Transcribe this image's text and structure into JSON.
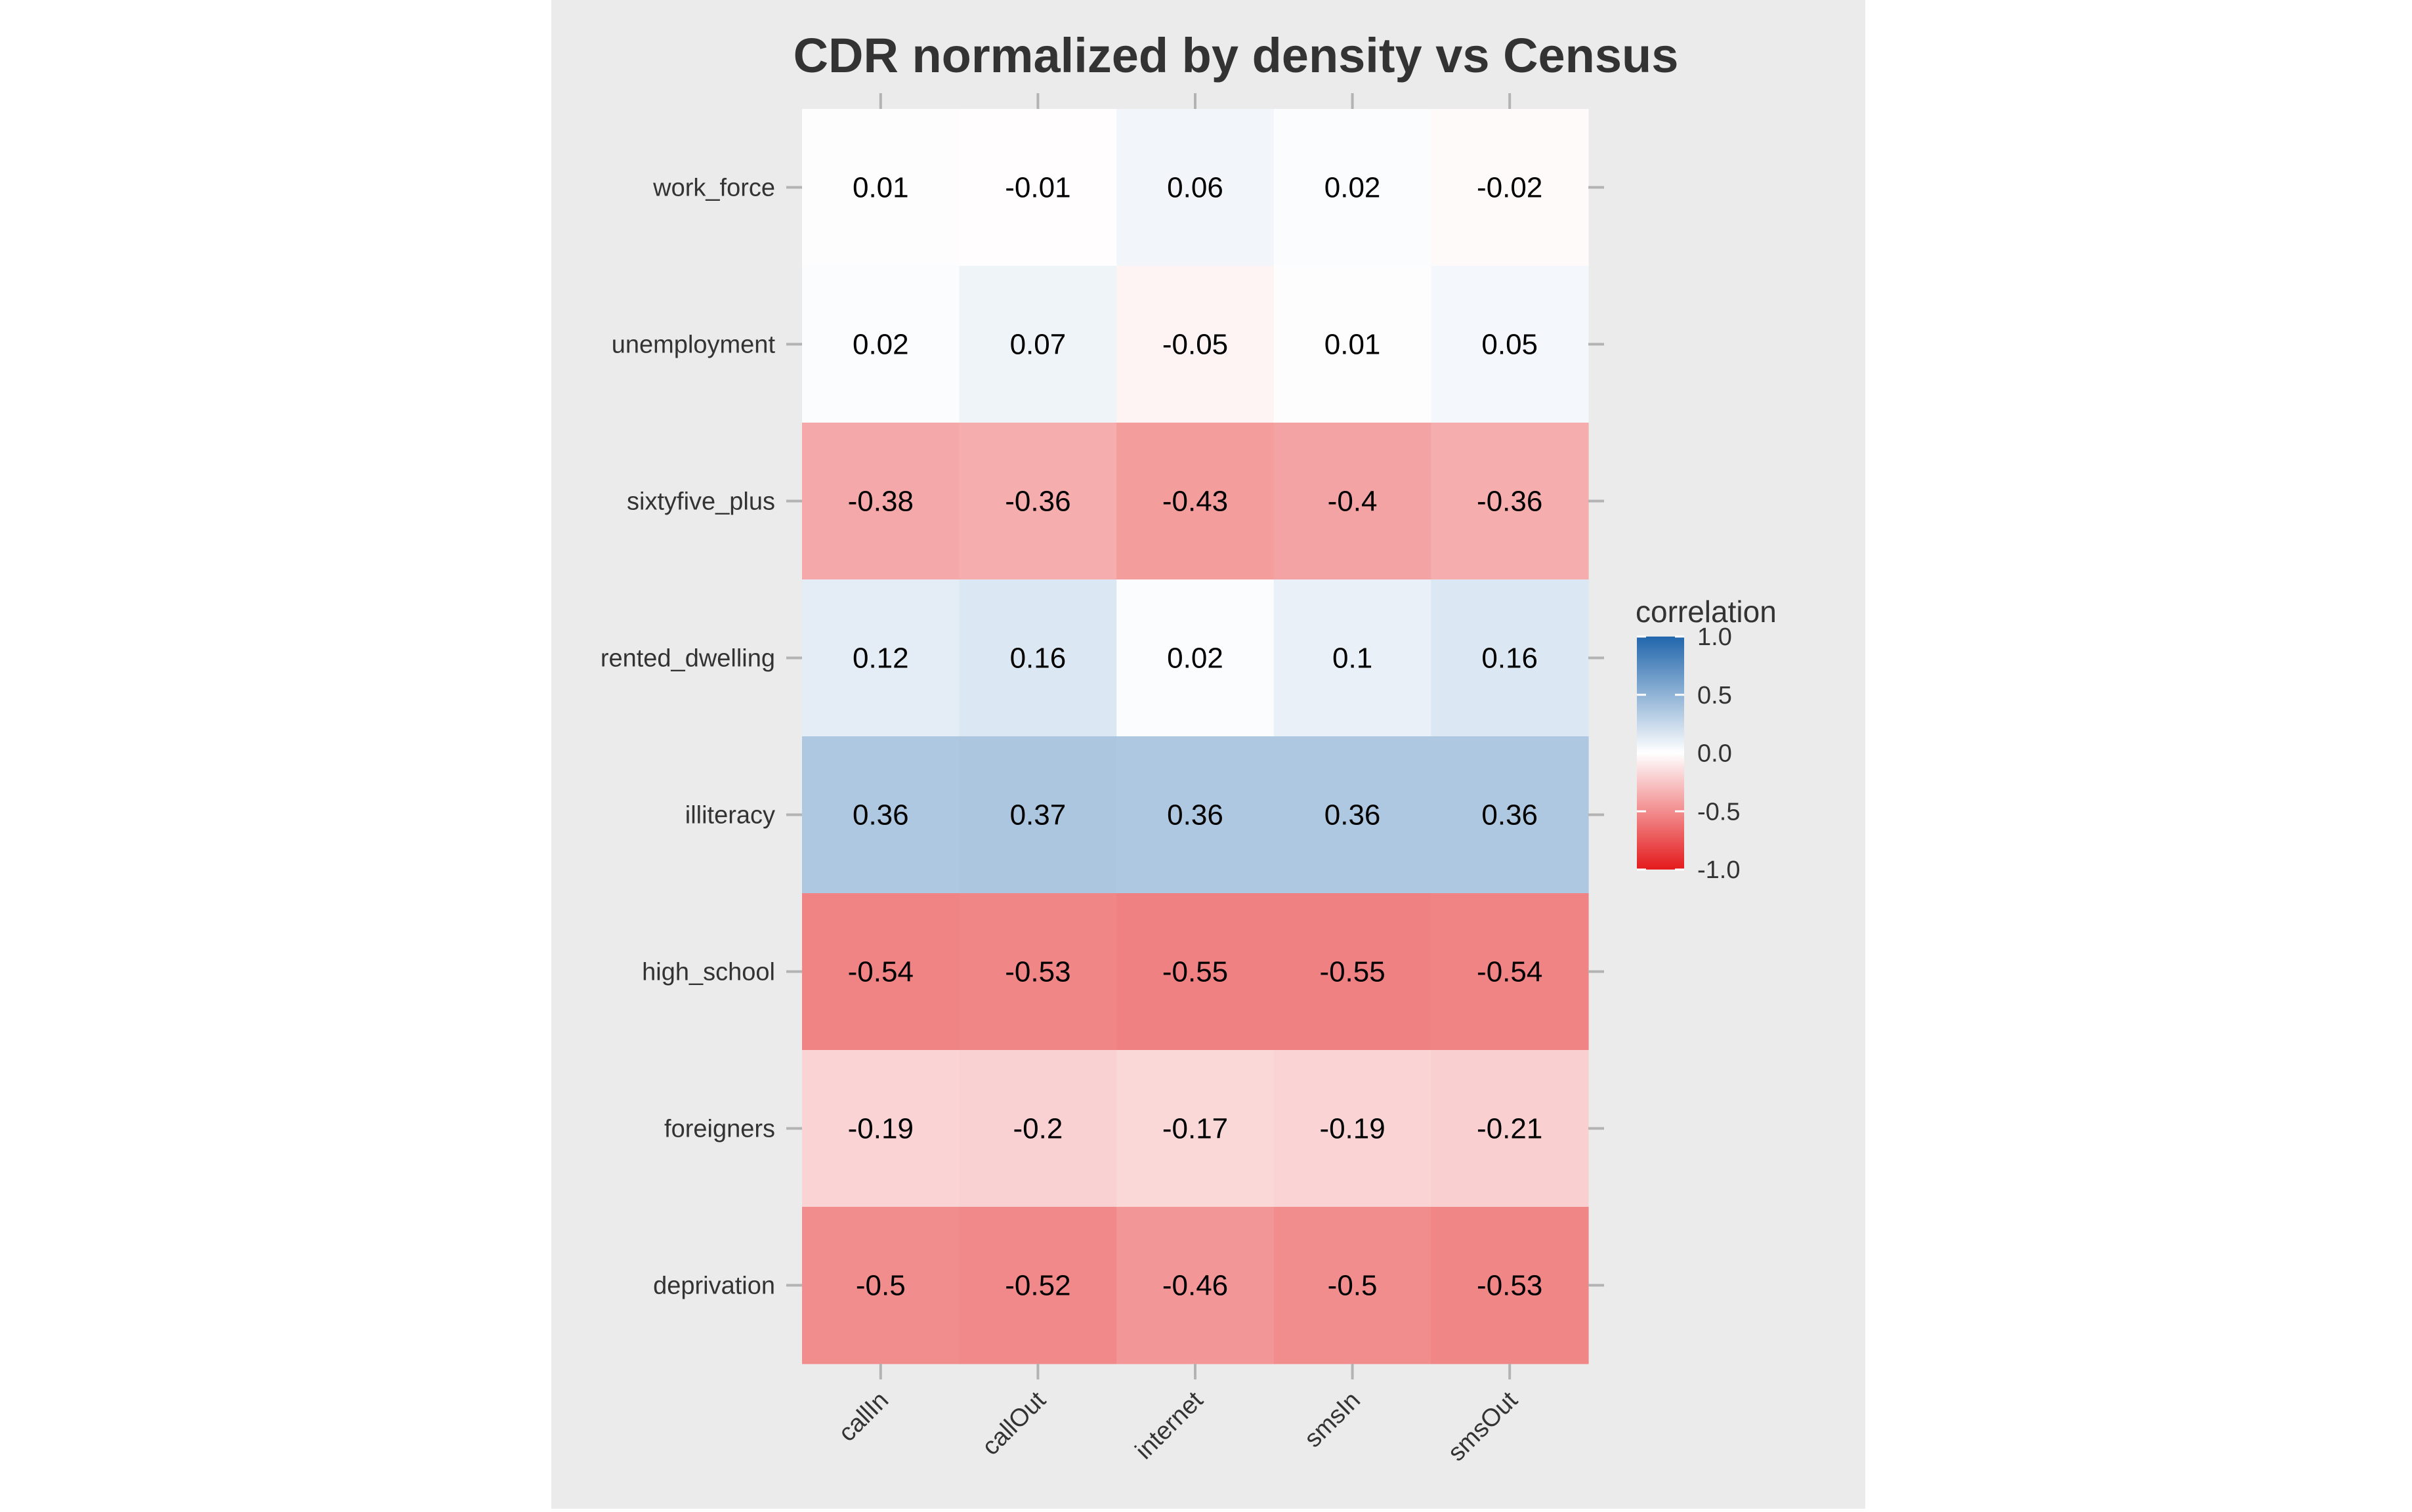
{
  "colors": {
    "page_background": "#ffffff",
    "panel_background": "#ebebeb",
    "tick_color": "#b3b3b3",
    "text_color": "#333333",
    "cell_text_color": "#000000",
    "scale_high": "#2166ac",
    "scale_mid": "#ffffff",
    "scale_low": "#e41a1c"
  },
  "chart_data": {
    "type": "heatmap",
    "title": "CDR normalized by density vs Census",
    "xlabel": "",
    "ylabel": "",
    "x_categories": [
      "callIn",
      "callOut",
      "internet",
      "smsIn",
      "smsOut"
    ],
    "y_categories": [
      "work_force",
      "unemployment",
      "sixtyfive_plus",
      "rented_dwelling",
      "illiteracy",
      "high_school",
      "foreigners",
      "deprivation"
    ],
    "values": [
      [
        0.01,
        -0.01,
        0.06,
        0.02,
        -0.02
      ],
      [
        0.02,
        0.07,
        -0.05,
        0.01,
        0.05
      ],
      [
        -0.38,
        -0.36,
        -0.43,
        -0.4,
        -0.36
      ],
      [
        0.12,
        0.16,
        0.02,
        0.1,
        0.16
      ],
      [
        0.36,
        0.37,
        0.36,
        0.36,
        0.36
      ],
      [
        -0.54,
        -0.53,
        -0.55,
        -0.55,
        -0.54
      ],
      [
        -0.19,
        -0.2,
        -0.17,
        -0.19,
        -0.21
      ],
      [
        -0.5,
        -0.52,
        -0.46,
        -0.5,
        -0.53
      ]
    ],
    "cell_labels": [
      [
        "0.01",
        "-0.01",
        "0.06",
        "0.02",
        "-0.02"
      ],
      [
        "0.02",
        "0.07",
        "-0.05",
        "0.01",
        "0.05"
      ],
      [
        "-0.38",
        "-0.36",
        "-0.43",
        "-0.4",
        "-0.36"
      ],
      [
        "0.12",
        "0.16",
        "0.02",
        "0.1",
        "0.16"
      ],
      [
        "0.36",
        "0.37",
        "0.36",
        "0.36",
        "0.36"
      ],
      [
        "-0.54",
        "-0.53",
        "-0.55",
        "-0.55",
        "-0.54"
      ],
      [
        "-0.19",
        "-0.2",
        "-0.17",
        "-0.19",
        "-0.21"
      ],
      [
        "-0.5",
        "-0.52",
        "-0.46",
        "-0.5",
        "-0.53"
      ]
    ],
    "legend": {
      "title": "correlation",
      "breaks": [
        1.0,
        0.5,
        0.0,
        -0.5,
        -1.0
      ],
      "labels": [
        "1.0",
        "0.5",
        "0.0",
        "-0.5",
        "-1.0"
      ],
      "limits": [
        -1,
        1
      ],
      "placement": "right"
    },
    "grid": false
  }
}
